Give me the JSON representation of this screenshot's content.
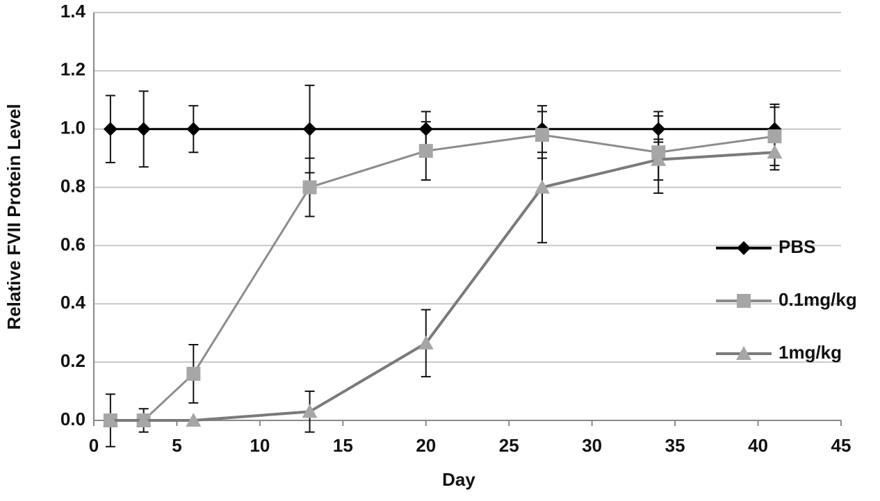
{
  "chart_data": {
    "type": "line",
    "x_label": "Day",
    "y_label": "Relative FVII Protein Level",
    "x": [
      1,
      3,
      6,
      13,
      20,
      27,
      34,
      41
    ],
    "series": [
      {
        "name": "PBS",
        "color": "#000000",
        "marker": "diamond",
        "values": [
          1.0,
          1.0,
          1.0,
          1.0,
          1.0,
          1.0,
          1.0,
          1.0
        ],
        "errors": [
          0.115,
          0.13,
          0.08,
          0.15,
          0.06,
          0.08,
          0.045,
          0.085
        ]
      },
      {
        "name": "0.1mg/kg",
        "color": "#8c8c8c",
        "marker": "square",
        "values": [
          0.0,
          0.0,
          0.16,
          0.8,
          0.925,
          0.98,
          0.92,
          0.975
        ],
        "errors": [
          0.09,
          0.04,
          0.1,
          0.1,
          0.1,
          0.08,
          0.14,
          0.1
        ]
      },
      {
        "name": "1mg/kg",
        "color": "#7a7a7a",
        "marker": "triangle",
        "values": [
          0.0,
          0.0,
          0.0,
          0.03,
          0.265,
          0.8,
          0.895,
          0.92
        ],
        "errors": [
          0.0,
          0.0,
          0.0,
          0.07,
          0.115,
          0.19,
          0.07,
          0.06
        ]
      }
    ],
    "xlim": [
      0,
      45
    ],
    "xticks": [
      0,
      5,
      10,
      15,
      20,
      25,
      30,
      35,
      40,
      45
    ],
    "ylim": [
      0,
      1.4
    ],
    "yticks": [
      {
        "value": 0,
        "label": "0.0"
      },
      {
        "value": 0.2,
        "label": "0.2"
      },
      {
        "value": 0.4,
        "label": "0.4"
      },
      {
        "value": 0.6,
        "label": "0.6"
      },
      {
        "value": 0.8,
        "label": "0.8"
      },
      {
        "value": 1.0,
        "label": "1.0"
      },
      {
        "value": 1.2,
        "label": "1.2"
      },
      {
        "value": 1.4,
        "label": "1.4"
      }
    ],
    "grid": true,
    "legend": "right"
  }
}
